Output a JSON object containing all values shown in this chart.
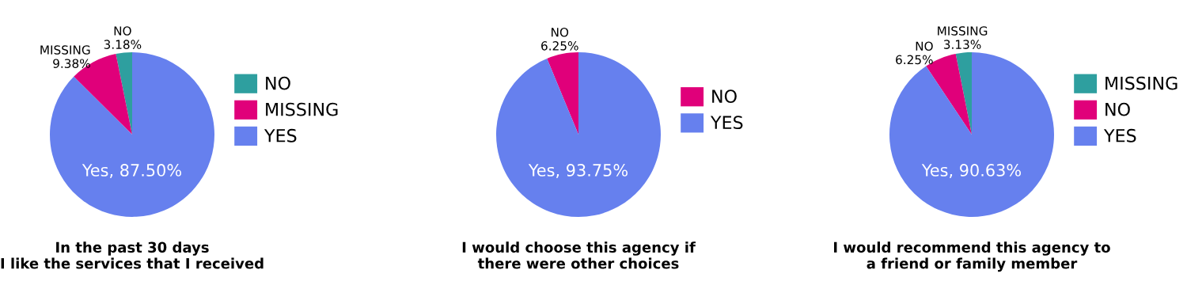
{
  "chart_data": [
    {
      "type": "pie",
      "title": "In the past 30 days\nI like the services that I received",
      "categories": [
        "NO",
        "MISSING",
        "YES"
      ],
      "values": [
        3.18,
        9.38,
        87.5
      ],
      "colors": [
        "#2e9f9f",
        "#e0007a",
        "#6680ee"
      ],
      "value_labels": [
        "NO\n3.18%",
        "MISSING\n9.38%",
        "Yes, 87.50%"
      ],
      "legend": "right"
    },
    {
      "type": "pie",
      "title": "I would choose this agency if\nthere were other choices",
      "categories": [
        "NO",
        "YES"
      ],
      "values": [
        6.25,
        93.75
      ],
      "colors": [
        "#e0007a",
        "#6680ee"
      ],
      "value_labels": [
        "NO\n6.25%",
        "Yes, 93.75%"
      ],
      "legend": "right"
    },
    {
      "type": "pie",
      "title": "I would recommend this agency to\na friend or family member",
      "categories": [
        "MISSING",
        "NO",
        "YES"
      ],
      "values": [
        3.13,
        6.25,
        90.63
      ],
      "colors": [
        "#2e9f9f",
        "#e0007a",
        "#6680ee"
      ],
      "value_labels": [
        "MISSING\n3.13%",
        "NO\n6.25%",
        "Yes, 90.63%"
      ],
      "legend": "right"
    }
  ]
}
